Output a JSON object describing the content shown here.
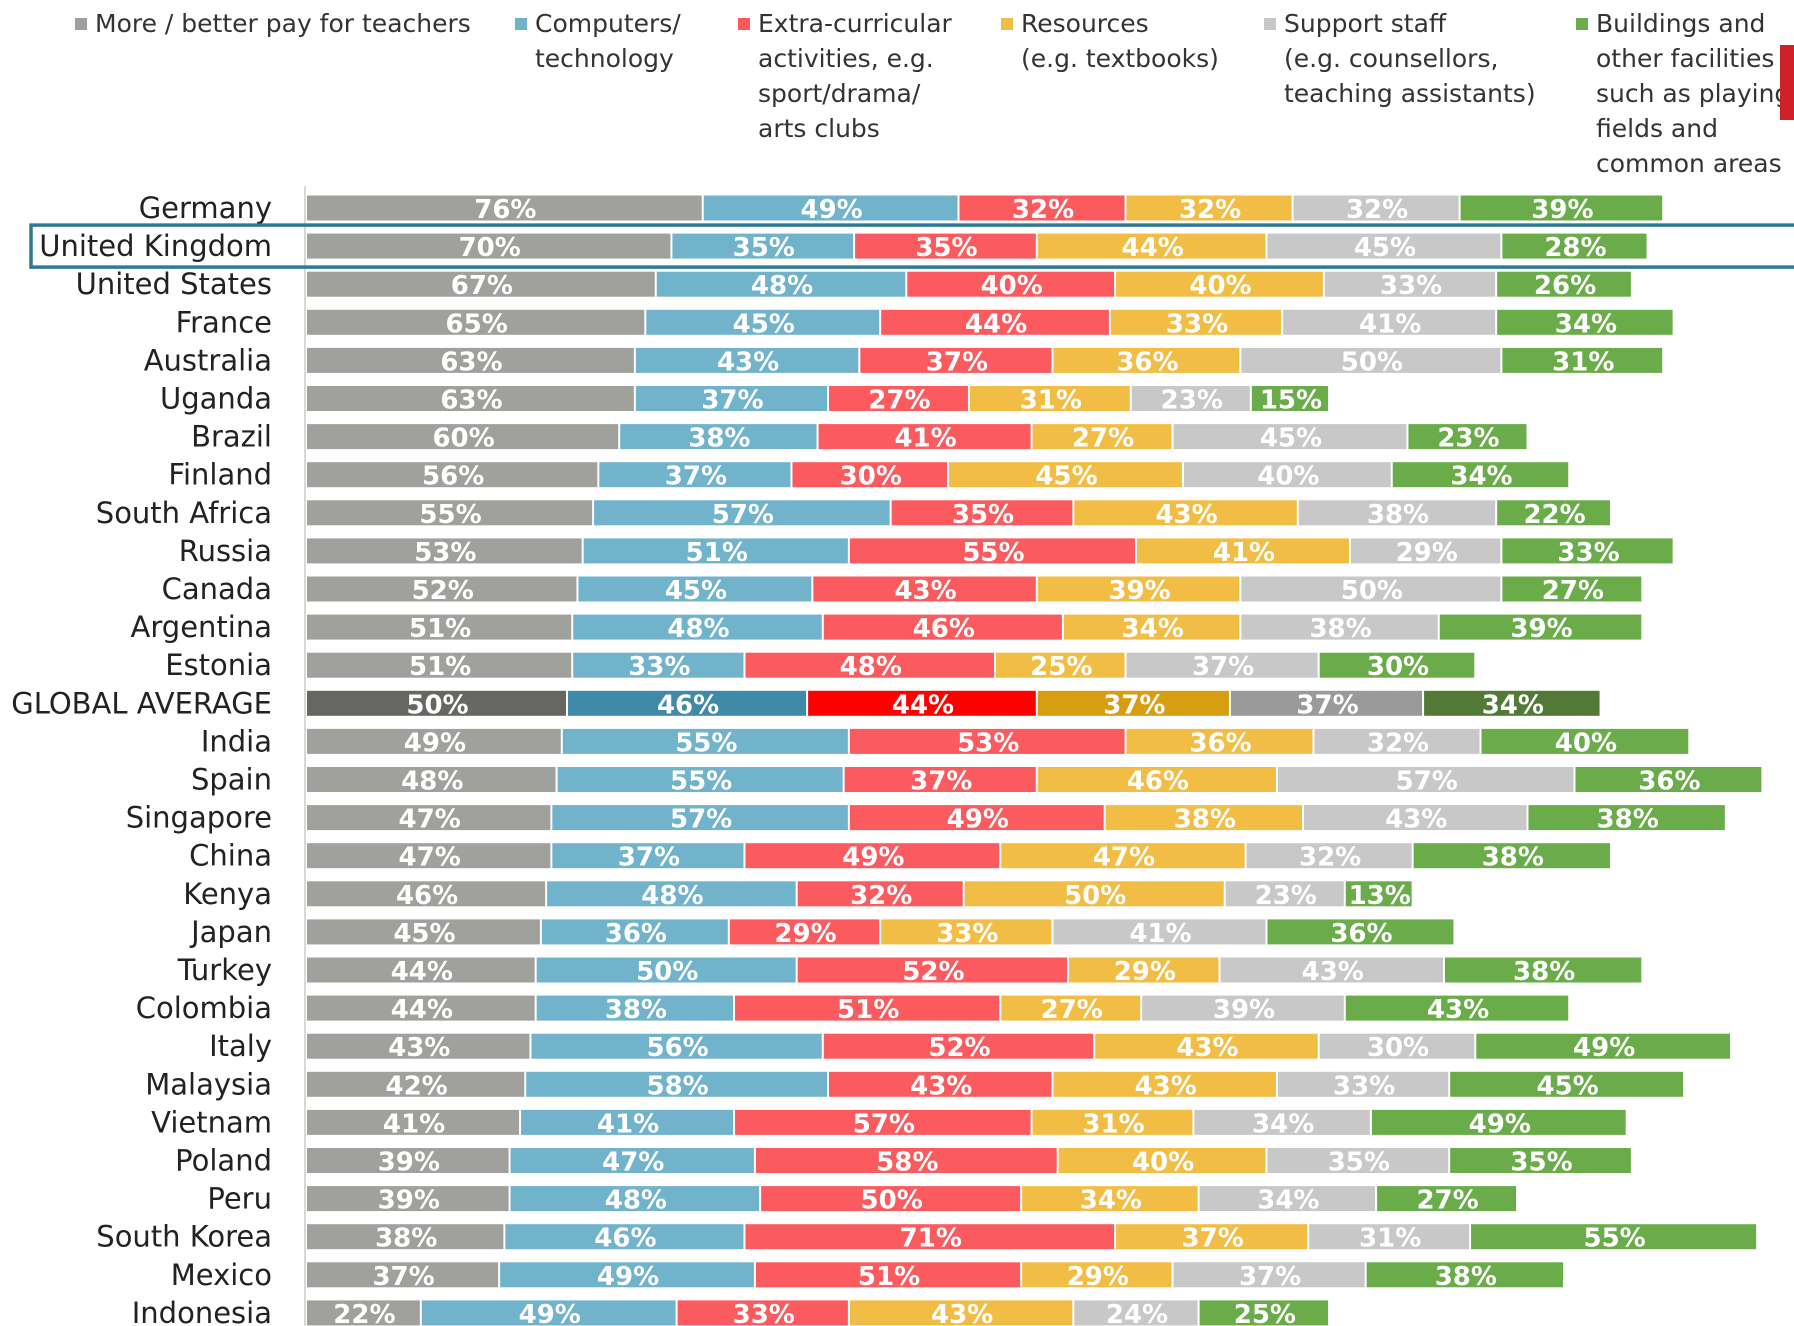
{
  "chart_data": {
    "type": "stacked-bar-horizontal",
    "categories": [
      "Germany",
      "United Kingdom",
      "United States",
      "France",
      "Australia",
      "Uganda",
      "Brazil",
      "Finland",
      "South Africa",
      "Russia",
      "Canada",
      "Argentina",
      "Estonia",
      "GLOBAL AVERAGE",
      "India",
      "Spain",
      "Singapore",
      "China",
      "Kenya",
      "Japan",
      "Turkey",
      "Colombia",
      "Italy",
      "Malaysia",
      "Vietnam",
      "Poland",
      "Peru",
      "South Korea",
      "Mexico",
      "Indonesia"
    ],
    "highlight_index": 13,
    "outlined_index": 1,
    "series": [
      {
        "name": "More / better pay for teachers",
        "color": "#a0a09c",
        "highlight_color": "#666663",
        "values": [
          76,
          70,
          67,
          65,
          63,
          63,
          60,
          56,
          55,
          53,
          52,
          51,
          51,
          50,
          49,
          48,
          47,
          47,
          46,
          45,
          44,
          44,
          43,
          42,
          41,
          39,
          39,
          38,
          37,
          22
        ],
        "value_labels": [
          "76%",
          "70%",
          "67%",
          "65%",
          "63%",
          "63%",
          "60%",
          "56%",
          "55%",
          "53%",
          "52%",
          "51%",
          "51%",
          "50%",
          "49%",
          "48%",
          "47%",
          "47%",
          "46%",
          "45%",
          "44%",
          "44%",
          "43%",
          "42%",
          "41%",
          "39%",
          "39%",
          "38%",
          "37%",
          "22%"
        ]
      },
      {
        "name": "Computers/\ntechnology",
        "color": "#72b3cc",
        "highlight_color": "#3f8aa8",
        "values": [
          49,
          35,
          48,
          45,
          43,
          37,
          38,
          37,
          57,
          51,
          45,
          48,
          33,
          46,
          55,
          55,
          57,
          37,
          48,
          36,
          50,
          38,
          56,
          58,
          41,
          47,
          48,
          46,
          49,
          49
        ],
        "value_labels": [
          "49%",
          "35%",
          "48%",
          "45%",
          "43%",
          "37%",
          "38%",
          "37%",
          "57%",
          "51%",
          "45%",
          "48%",
          "33%",
          "46%",
          "55%",
          "55%",
          "57%",
          "37%",
          "48%",
          "36%",
          "50%",
          "38%",
          "56%",
          "58%",
          "41%",
          "47%",
          "48%",
          "46%",
          "49%",
          "49%"
        ]
      },
      {
        "name": "Extra-curricular\nactivities, e.g.\nsport/drama/\narts clubs",
        "color": "#fb5a5f",
        "highlight_color": "#ff0000",
        "values": [
          32,
          35,
          40,
          44,
          37,
          27,
          41,
          30,
          35,
          55,
          43,
          46,
          48,
          44,
          53,
          37,
          49,
          49,
          32,
          29,
          52,
          51,
          52,
          43,
          57,
          58,
          50,
          71,
          51,
          33
        ],
        "value_labels": [
          "32%",
          "35%",
          "40%",
          "44%",
          "37%",
          "27%",
          "41%",
          "30%",
          "35%",
          "55%",
          "43%",
          "46%",
          "48%",
          "44%",
          "53%",
          "37%",
          "49%",
          "49%",
          "32%",
          "29%",
          "52%",
          "51%",
          "52%",
          "43%",
          "57%",
          "58%",
          "50%",
          "71%",
          "51%",
          "33%"
        ]
      },
      {
        "name": "Resources\n(e.g. textbooks)",
        "color": "#f2bd45",
        "highlight_color": "#d89e12",
        "values": [
          32,
          44,
          40,
          33,
          36,
          31,
          27,
          45,
          43,
          41,
          39,
          34,
          25,
          37,
          36,
          46,
          38,
          47,
          50,
          33,
          29,
          27,
          43,
          43,
          31,
          40,
          34,
          37,
          29,
          43
        ],
        "value_labels": [
          "32%",
          "44%",
          "40%",
          "33%",
          "36%",
          "31%",
          "27%",
          "45%",
          "43%",
          "41%",
          "39%",
          "34%",
          "25%",
          "37%",
          "36%",
          "46%",
          "38%",
          "47%",
          "50%",
          "33%",
          "29%",
          "27%",
          "43%",
          "43%",
          "31%",
          "40%",
          "34%",
          "37%",
          "29%",
          "43%"
        ]
      },
      {
        "name": "Support staff\n(e.g. counsellors,\nteaching assistants)",
        "color": "#c8c8c8",
        "highlight_color": "#9a9a9a",
        "values": [
          32,
          45,
          33,
          41,
          50,
          23,
          45,
          40,
          38,
          29,
          50,
          38,
          37,
          37,
          32,
          57,
          43,
          32,
          23,
          41,
          43,
          39,
          30,
          33,
          34,
          35,
          34,
          31,
          37,
          24
        ],
        "value_labels": [
          "32%",
          "45%",
          "33%",
          "41%",
          "50%",
          "23%",
          "45%",
          "40%",
          "38%",
          "29%",
          "50%",
          "38%",
          "37%",
          "37%",
          "32%",
          "57%",
          "43%",
          "32%",
          "23%",
          "41%",
          "43%",
          "39%",
          "30%",
          "33%",
          "34%",
          "35%",
          "34%",
          "31%",
          "37%",
          "24%"
        ]
      },
      {
        "name": "Buildings and\nother facilities\nsuch as playing\nfields and\ncommon areas",
        "color": "#6aac4a",
        "highlight_color": "#527a36",
        "values": [
          39,
          28,
          26,
          34,
          31,
          15,
          23,
          34,
          22,
          33,
          27,
          39,
          30,
          34,
          40,
          36,
          38,
          38,
          13,
          36,
          38,
          43,
          49,
          45,
          49,
          35,
          27,
          55,
          38,
          25
        ],
        "value_labels": [
          "39%",
          "28%",
          "26%",
          "34%",
          "31%",
          "15%",
          "23%",
          "34%",
          "22%",
          "33%",
          "27%",
          "39%",
          "30%",
          "34%",
          "40%",
          "36%",
          "38%",
          "38%",
          "13%",
          "36%",
          "38%",
          "43%",
          "49%",
          "45%",
          "49%",
          "35%",
          "27%",
          "55%",
          "38%",
          "25%"
        ]
      }
    ]
  }
}
